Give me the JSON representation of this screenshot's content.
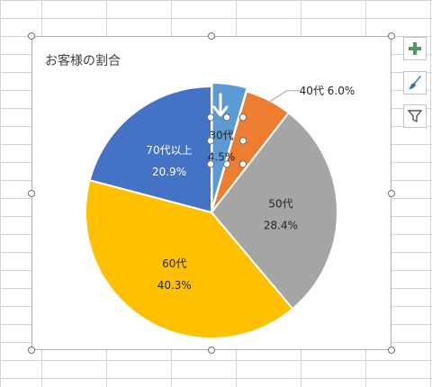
{
  "chart_data": {
    "type": "pie",
    "title": "お客様の割合",
    "slices": [
      {
        "name": "30代",
        "value": 4.5,
        "label": "4.5%",
        "color": "#5b9bd5"
      },
      {
        "name": "40代",
        "value": 6.0,
        "label": "6.0%",
        "color": "#ed7d31"
      },
      {
        "name": "50代",
        "value": 28.4,
        "label": "28.4%",
        "color": "#a5a5a5"
      },
      {
        "name": "60代",
        "value": 40.3,
        "label": "40.3%",
        "color": "#ffc000"
      },
      {
        "name": "70代以上",
        "value": 20.9,
        "label": "20.9%",
        "color": "#4472c4"
      }
    ],
    "start_angle_deg": 0,
    "direction": "clockwise",
    "selected_slice": "30代"
  },
  "side_buttons": [
    {
      "name": "chart-elements-button",
      "icon": "plus-icon"
    },
    {
      "name": "chart-styles-button",
      "icon": "brush-icon"
    },
    {
      "name": "chart-filters-button",
      "icon": "filter-icon"
    }
  ]
}
